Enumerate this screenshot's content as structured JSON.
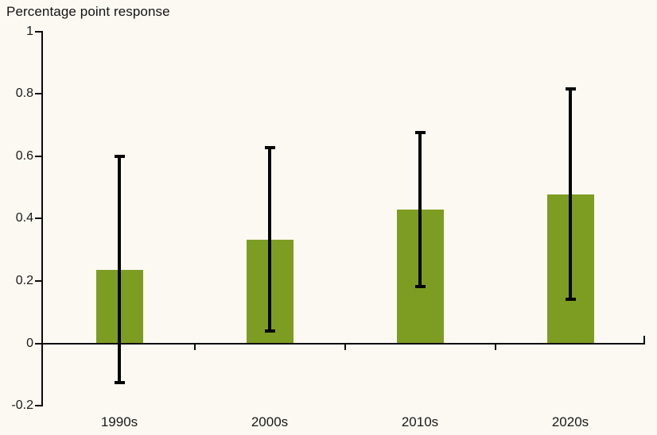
{
  "title": "Percentage point response",
  "colors": {
    "background": "#FBF9F2",
    "bar": "#7D9D22",
    "axis": "#0B0B0B",
    "error_bar": "#050505",
    "text": "#1A1A1A"
  },
  "chart_data": {
    "type": "bar",
    "title": "Percentage point response",
    "categories": [
      "1990s",
      "2000s",
      "2010s",
      "2020s"
    ],
    "series": [
      {
        "name": "Percentage point response",
        "values": [
          0.235,
          0.333,
          0.43,
          0.478
        ]
      }
    ],
    "error_bars": {
      "low": [
        -0.125,
        0.04,
        0.182,
        0.14
      ],
      "high": [
        0.6,
        0.627,
        0.675,
        0.815
      ]
    },
    "xlabel": "",
    "ylabel": "Percentage point response",
    "ylim": [
      -0.2,
      1
    ],
    "yticks": [
      1,
      0.8,
      0.6,
      0.4,
      0.2,
      0,
      -0.2
    ],
    "ytick_labels": [
      "1",
      "0.8",
      "0.6",
      "0.4",
      "0.2",
      "0",
      "-0.2"
    ],
    "grid": false,
    "legend": "none"
  }
}
